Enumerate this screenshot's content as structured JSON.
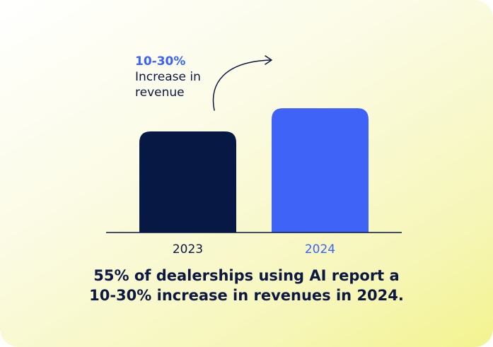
{
  "colors": {
    "bar_2023": "#081845",
    "bar_2024": "#3f63f6",
    "label_2023": "#0c1742",
    "label_2024": "#3f63f6",
    "axis": "#0c1742",
    "arrow": "#0c1742"
  },
  "annotation": {
    "percent": "10-30%",
    "text": "Increase in\nrevenue",
    "arrow_icon": "curved-arrow-icon"
  },
  "caption": "55% of dealerships using AI report a\n10-30% increase in revenues in 2024.",
  "chart_data": {
    "type": "bar",
    "categories": [
      "2023",
      "2024"
    ],
    "values": [
      100,
      123
    ],
    "title": "",
    "xlabel": "",
    "ylabel": "",
    "grid": false,
    "legend": "none"
  }
}
